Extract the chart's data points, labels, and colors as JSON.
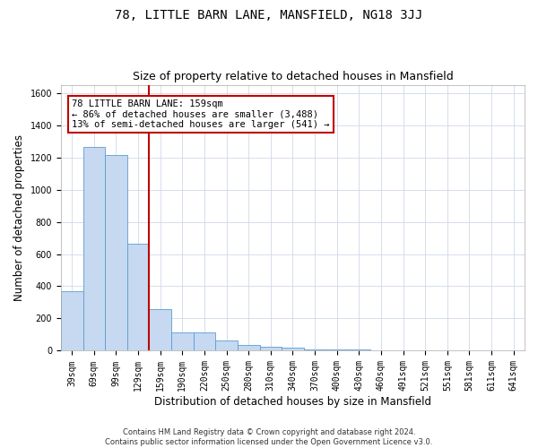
{
  "title": "78, LITTLE BARN LANE, MANSFIELD, NG18 3JJ",
  "subtitle": "Size of property relative to detached houses in Mansfield",
  "xlabel": "Distribution of detached houses by size in Mansfield",
  "ylabel": "Number of detached properties",
  "categories": [
    "39sqm",
    "69sqm",
    "99sqm",
    "129sqm",
    "159sqm",
    "190sqm",
    "220sqm",
    "250sqm",
    "280sqm",
    "310sqm",
    "340sqm",
    "370sqm",
    "400sqm",
    "430sqm",
    "460sqm",
    "491sqm",
    "521sqm",
    "551sqm",
    "581sqm",
    "611sqm",
    "641sqm"
  ],
  "values": [
    370,
    1265,
    1215,
    665,
    260,
    115,
    115,
    65,
    35,
    25,
    18,
    10,
    8,
    7,
    2,
    1,
    0,
    0,
    0,
    0,
    0
  ],
  "bar_color": "#c6d9f0",
  "bar_edge_color": "#5b9bd5",
  "highlight_line_index": 4,
  "highlight_color": "#c00000",
  "annotation_text": "78 LITTLE BARN LANE: 159sqm\n← 86% of detached houses are smaller (3,488)\n13% of semi-detached houses are larger (541) →",
  "annotation_box_color": "white",
  "annotation_box_edge_color": "#c00000",
  "ylim": [
    0,
    1650
  ],
  "yticks": [
    0,
    200,
    400,
    600,
    800,
    1000,
    1200,
    1400,
    1600
  ],
  "grid_color": "#d0d8e8",
  "background_color": "white",
  "footer_text": "Contains HM Land Registry data © Crown copyright and database right 2024.\nContains public sector information licensed under the Open Government Licence v3.0.",
  "title_fontsize": 10,
  "subtitle_fontsize": 9,
  "axis_label_fontsize": 8.5,
  "tick_fontsize": 7,
  "annotation_fontsize": 7.5,
  "footer_fontsize": 6
}
